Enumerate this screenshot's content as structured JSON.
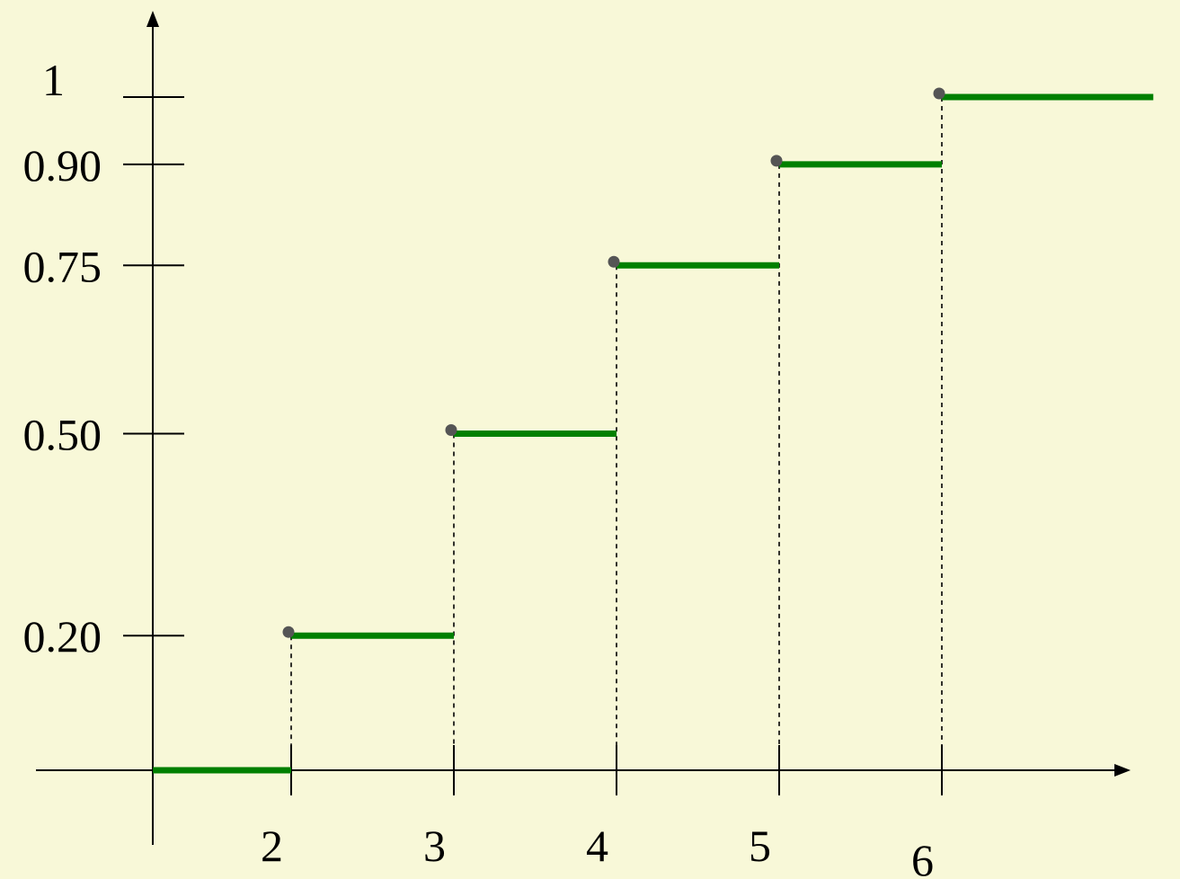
{
  "chart_data": {
    "type": "line",
    "title": "",
    "xlabel": "",
    "ylabel": "",
    "x_ticks": [
      "2",
      "3",
      "4",
      "5",
      "6"
    ],
    "x_tick_values": [
      2,
      3,
      4,
      5,
      6
    ],
    "y_ticks": [
      "0.20",
      "0.50",
      "0.75",
      "0.90",
      "1"
    ],
    "y_tick_values": [
      0.2,
      0.5,
      0.75,
      0.9,
      1
    ],
    "xlim": [
      1.15,
      7.3
    ],
    "ylim": [
      0,
      1.2
    ],
    "series": [
      {
        "steps": [
          {
            "x_start": 1.15,
            "x_end": 2,
            "y": 0
          },
          {
            "x_start": 2,
            "x_end": 3,
            "y": 0.2
          },
          {
            "x_start": 3,
            "x_end": 4,
            "y": 0.5
          },
          {
            "x_start": 4,
            "x_end": 5,
            "y": 0.75
          },
          {
            "x_start": 5,
            "x_end": 6,
            "y": 0.9
          },
          {
            "x_start": 6,
            "x_end": 7.3,
            "y": 1
          }
        ],
        "color": "#008000"
      }
    ],
    "jump_points": [
      {
        "x": 2,
        "y": 0.2
      },
      {
        "x": 3,
        "y": 0.5
      },
      {
        "x": 4,
        "y": 0.75
      },
      {
        "x": 5,
        "y": 0.9
      },
      {
        "x": 6,
        "y": 1
      }
    ],
    "point_color": "#555555",
    "axis_color": "#000000",
    "background": "#f8f8d8",
    "grid": false,
    "legend": "none"
  }
}
